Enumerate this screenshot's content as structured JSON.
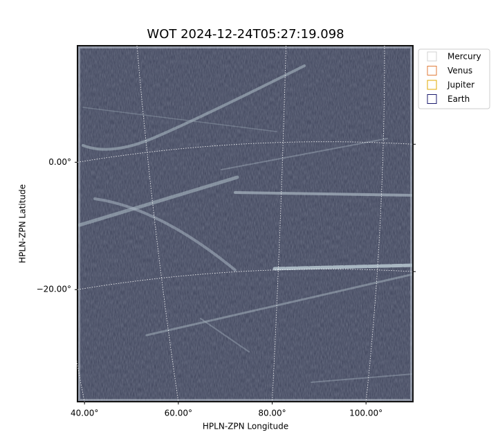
{
  "chart_data": {
    "type": "image",
    "title": "WOT 2024-12-24T05:27:19.098",
    "x_label": "HPLN-ZPN Longitude",
    "y_label": "HPLN-ZPN Latitude",
    "xlim": [
      38.5,
      110
    ],
    "ylim": [
      -37.6,
      18.3
    ],
    "xticks": [
      {
        "value": 40,
        "label": "40.00°"
      },
      {
        "value": 60,
        "label": "60.00°"
      },
      {
        "value": 80,
        "label": "80.00°"
      },
      {
        "value": 100,
        "label": "100.00°"
      }
    ],
    "yticks": [
      {
        "value": 0,
        "label": "0.00°"
      },
      {
        "value": -20,
        "label": "−20.00°"
      }
    ],
    "grid": true,
    "legend_position": "upper right",
    "legend_entries": [
      {
        "name": "Mercury",
        "color": "#d0d0d0"
      },
      {
        "name": "Venus",
        "color": "#e07b39"
      },
      {
        "name": "Jupiter",
        "color": "#e0a800"
      },
      {
        "name": "Earth",
        "color": "#1a1a6e"
      }
    ]
  }
}
